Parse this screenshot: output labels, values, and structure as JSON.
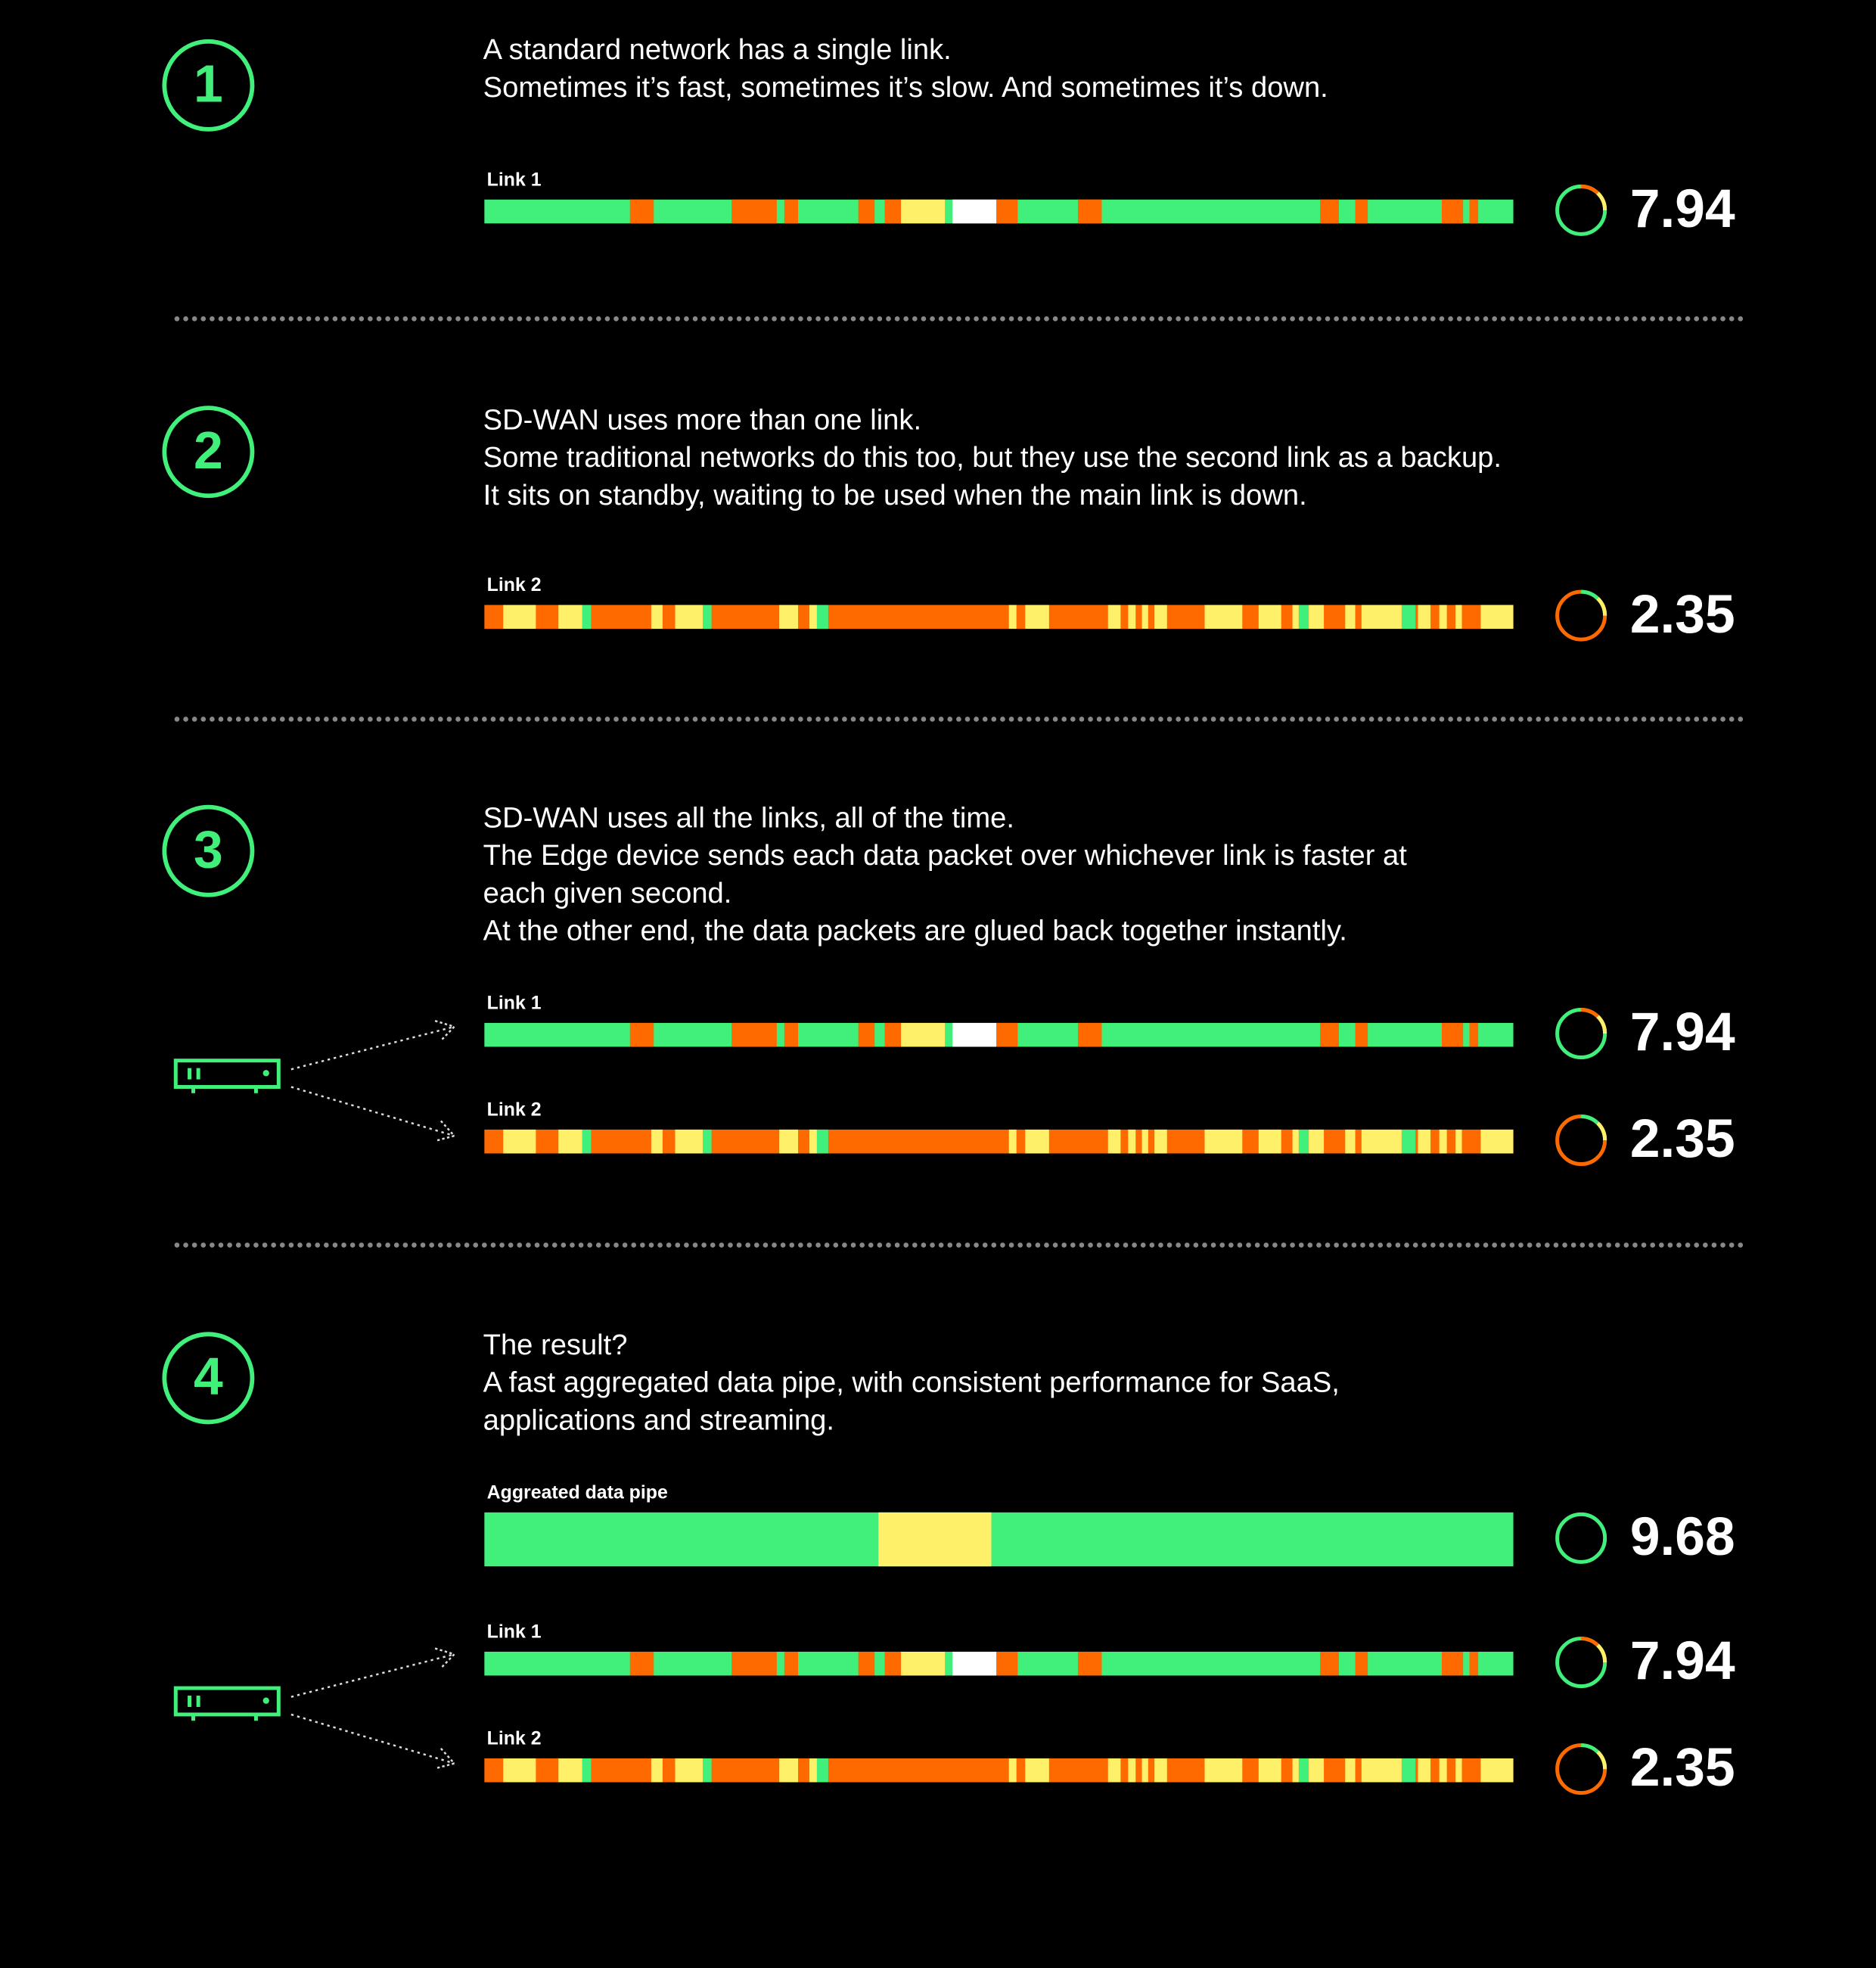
{
  "steps": [
    {
      "number": 1,
      "text": [
        "A standard network has a single link.",
        "Sometimes it’s fast, sometimes it’s slow. And sometimes it’s down."
      ],
      "links": [
        {
          "label": "Link 1",
          "score": 7.94
        }
      ]
    },
    {
      "number": 2,
      "text": [
        "SD-WAN uses more than one link.",
        "Some traditional networks do this too, but they use the second link as a backup.",
        "It sits on standby, waiting to be used when the main link is down."
      ],
      "links": [
        {
          "label": "Link 2",
          "score": 2.35
        }
      ]
    },
    {
      "number": 3,
      "text": [
        "SD-WAN uses all the links, all of the time.",
        "The Edge device sends each data packet over whichever link is faster at",
        "each given second.",
        "At the other end, the data packets are glued back together instantly."
      ],
      "links": [
        {
          "label": "Link 1",
          "score": 7.94
        },
        {
          "label": "Link 2",
          "score": 2.35
        }
      ]
    },
    {
      "number": 4,
      "text": [
        "The result?",
        "A fast aggregated data pipe, with consistent performance for SaaS,",
        "applications and streaming."
      ],
      "links": [
        {
          "label": "Aggreated data pipe",
          "score": 9.68
        },
        {
          "label": "Link 1",
          "score": 7.94
        },
        {
          "label": "Link 2",
          "score": 2.35
        }
      ]
    }
  ]
}
